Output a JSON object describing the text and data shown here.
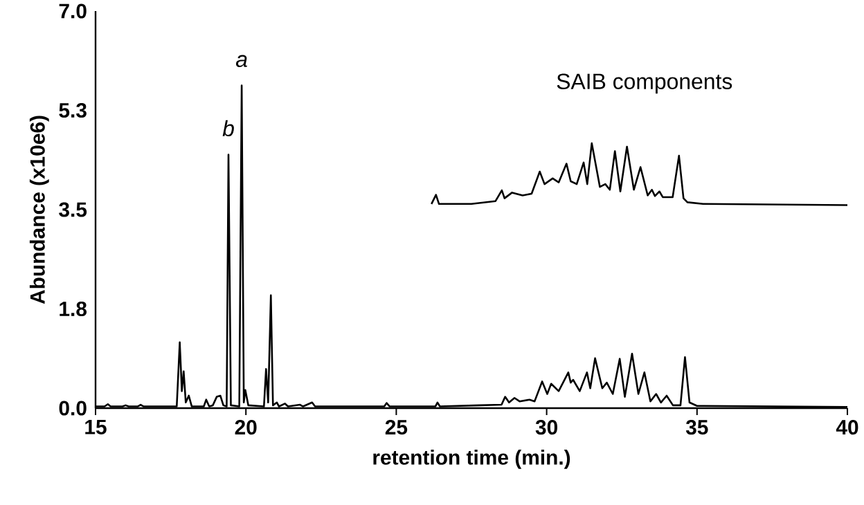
{
  "chart_data": {
    "type": "line",
    "xlabel": "retention time (min.)",
    "ylabel": "Abundance (x10e6)",
    "xlim": [
      15,
      40
    ],
    "ylim": [
      0,
      7
    ],
    "xticks": [
      15,
      20,
      25,
      30,
      35,
      40
    ],
    "yticks": [
      {
        "value": 0,
        "label": "0.0"
      },
      {
        "value": 1.75,
        "label": "1.8"
      },
      {
        "value": 3.5,
        "label": "3.5"
      },
      {
        "value": 5.25,
        "label": "5.3"
      },
      {
        "value": 7,
        "label": "7.0"
      }
    ],
    "marker": "none",
    "line_style": "solid",
    "annotations": [
      {
        "text": "a",
        "x": 19.86,
        "y": 5.69
      },
      {
        "text": "b",
        "x": 19.42,
        "y": 4.47
      },
      "SAIB components"
    ],
    "series": [
      {
        "color": "#000000",
        "x": [
          15,
          15.3,
          15.41,
          15.5,
          15.9,
          16.0,
          16.1,
          16.4,
          16.5,
          16.6,
          17.7,
          17.8,
          17.87,
          17.93,
          18.0,
          18.1,
          18.2,
          18.6,
          18.68,
          18.78,
          18.9,
          19.03,
          19.15,
          19.25,
          19.36,
          19.42,
          19.5,
          19.78,
          19.86,
          19.93,
          19.98,
          20.08,
          20.6,
          20.67,
          20.74,
          20.83,
          20.9,
          21.03,
          21.1,
          21.3,
          21.4,
          21.8,
          21.9,
          22.2,
          22.3,
          24.6,
          24.68,
          24.78,
          26.3,
          26.37,
          26.45,
          27.78,
          28.5,
          28.62,
          28.75,
          28.93,
          29.1,
          29.43,
          29.6,
          29.85,
          30.02,
          30.15,
          30.4,
          30.72,
          30.8,
          30.88,
          31.1,
          31.34,
          31.45,
          31.61,
          31.85,
          32.0,
          32.2,
          32.43,
          32.6,
          32.84,
          33.05,
          33.25,
          33.45,
          33.64,
          33.8,
          33.99,
          34.2,
          34.45,
          34.6,
          34.75,
          35.0,
          40
        ],
        "values": [
          0.03,
          0.03,
          0.07,
          0.03,
          0.03,
          0.05,
          0.03,
          0.03,
          0.06,
          0.03,
          0.03,
          1.16,
          0.3,
          0.65,
          0.1,
          0.22,
          0.03,
          0.03,
          0.15,
          0.03,
          0.05,
          0.2,
          0.22,
          0.05,
          0.03,
          4.47,
          0.05,
          0.03,
          5.69,
          0.1,
          0.32,
          0.05,
          0.03,
          0.69,
          0.1,
          1.99,
          0.05,
          0.1,
          0.03,
          0.08,
          0.03,
          0.06,
          0.03,
          0.1,
          0.03,
          0.03,
          0.09,
          0.03,
          0.03,
          0.1,
          0.03,
          0.05,
          0.06,
          0.2,
          0.1,
          0.18,
          0.12,
          0.15,
          0.12,
          0.47,
          0.25,
          0.43,
          0.3,
          0.63,
          0.45,
          0.5,
          0.3,
          0.63,
          0.35,
          0.88,
          0.35,
          0.45,
          0.25,
          0.87,
          0.2,
          0.96,
          0.25,
          0.63,
          0.12,
          0.25,
          0.1,
          0.22,
          0.05,
          0.05,
          0.9,
          0.1,
          0.04,
          0.02
        ]
      },
      {
        "color": "#000000",
        "x": [
          26.17,
          26.32,
          26.42,
          27.5,
          28.3,
          28.51,
          28.6,
          28.85,
          29.2,
          29.5,
          29.77,
          29.93,
          30.2,
          30.4,
          30.66,
          30.8,
          31.0,
          31.23,
          31.35,
          31.5,
          31.77,
          31.95,
          32.1,
          32.27,
          32.45,
          32.67,
          32.9,
          33.12,
          33.36,
          33.5,
          33.6,
          33.75,
          33.86,
          34.19,
          34.4,
          34.55,
          34.68,
          35.2,
          40
        ],
        "values": [
          3.6,
          3.76,
          3.6,
          3.6,
          3.65,
          3.84,
          3.7,
          3.8,
          3.75,
          3.78,
          4.17,
          3.95,
          4.05,
          3.98,
          4.31,
          4.0,
          3.95,
          4.33,
          3.95,
          4.67,
          3.9,
          3.95,
          3.85,
          4.53,
          3.82,
          4.61,
          3.85,
          4.25,
          3.75,
          3.85,
          3.74,
          3.82,
          3.72,
          3.72,
          4.45,
          3.7,
          3.63,
          3.6,
          3.58
        ]
      }
    ]
  }
}
